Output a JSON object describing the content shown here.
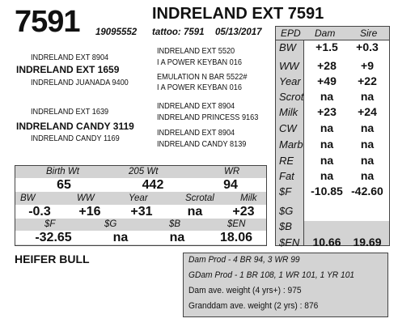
{
  "header": {
    "lot": "7591",
    "title": "INDRELAND EXT 7591",
    "reg": "19095552",
    "tattoo": "tattoo: 7591",
    "date": "05/13/2017"
  },
  "pedigree": {
    "sire_sire_sire": "INDRELAND EXT 5520",
    "sire_sire_dam": "I A POWER KEYBAN 016",
    "sire_sire": "INDRELAND EXT 8904",
    "sire": "INDRELAND EXT 1659",
    "sire_dam_sire": "EMULATION N BAR 5522#",
    "sire_dam_dam": "I A POWER KEYBAN 016",
    "sire_dam": "INDRELAND JUANADA 9400",
    "dam_sire_sire": "INDRELAND EXT 8904",
    "dam_sire_dam": "INDRELAND PRINCESS 9163",
    "dam_sire": "INDRELAND EXT 1639",
    "dam": "INDRELAND CANDY 3119",
    "dam_dam_sire": "INDRELAND EXT 8904",
    "dam_dam_dam": "INDRELAND CANDY 8139",
    "dam_dam": "INDRELAND CANDY 1169"
  },
  "epd": {
    "header": {
      "label": "EPD",
      "dam": "Dam",
      "sire": "Sire"
    },
    "rows": [
      {
        "label": "BW",
        "dam": "+1.5",
        "sire": "+0.3"
      },
      {
        "label": "WW",
        "dam": "+28",
        "sire": "+9"
      },
      {
        "label": "Year",
        "dam": "+49",
        "sire": "+22"
      },
      {
        "label": "Scrot",
        "dam": "na",
        "sire": "na"
      },
      {
        "label": "Milk",
        "dam": "+23",
        "sire": "+24"
      },
      {
        "label": "CW",
        "dam": "na",
        "sire": "na"
      },
      {
        "label": "Marb",
        "dam": "na",
        "sire": "na"
      },
      {
        "label": "RE",
        "dam": "na",
        "sire": "na"
      },
      {
        "label": "Fat",
        "dam": "na",
        "sire": "na"
      },
      {
        "label": "$F",
        "dam": "-10.85",
        "sire": "-42.60"
      },
      {
        "label": "$G",
        "dam": "",
        "sire": ""
      },
      {
        "label": "$B",
        "dam": "",
        "sire": ""
      },
      {
        "label": "$EN",
        "dam": "10.66",
        "sire": "19.69"
      }
    ]
  },
  "perf": {
    "row1_labels": [
      "Birth Wt",
      "205 Wt",
      "WR"
    ],
    "row1_values": [
      "65",
      "442",
      "94"
    ],
    "row2_labels": [
      "BW",
      "WW",
      "Year",
      "Scrotal",
      "Milk"
    ],
    "row2_values": [
      "-0.3",
      "+16",
      "+31",
      "na",
      "+23"
    ],
    "row3_labels": [
      "$F",
      "$G",
      "$B",
      "$EN"
    ],
    "row3_values": [
      "-32.65",
      "na",
      "na",
      "18.06"
    ]
  },
  "footer": {
    "heifer": "HEIFER BULL",
    "dam_prod": "Dam Prod - 4 BR 94, 3 WR 99",
    "gdam_prod": "GDam Prod - 1 BR 108, 1 WR 101, 1 YR 101",
    "dam_weight": "Dam ave. weight (4 yrs+) : 975",
    "gdam_weight": "Granddam ave. weight (2 yrs) : 876"
  }
}
